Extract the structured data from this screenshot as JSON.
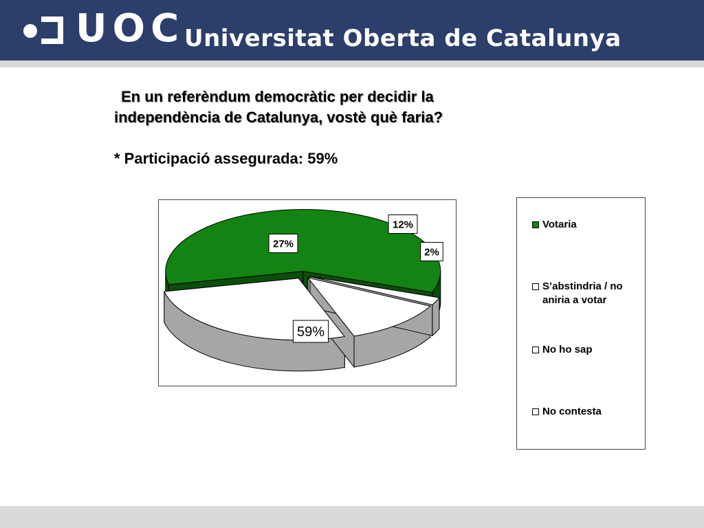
{
  "header": {
    "logo_text": "UOC",
    "institution": "Universitat Oberta de Catalunya"
  },
  "question": {
    "line1": "En un referèndum democràtic per decidir la",
    "line2": "independència de Catalunya, vostè què faria?"
  },
  "participation": "* Participació assegurada: 59%",
  "colors": {
    "header_bg": "#2c3f6b",
    "votaria": "#138413",
    "votaria_side": "#0b4e0b",
    "other": "#ffffff",
    "other_side": "#a6a6a6"
  },
  "chart_data": {
    "type": "pie",
    "title": "",
    "labels": [
      "Votaria",
      "S’abstindria / no aniria a votar",
      "No ho sap",
      "No contesta"
    ],
    "values": [
      59,
      27,
      12,
      2
    ],
    "value_labels": [
      "59%",
      "27%",
      "12%",
      "2%"
    ],
    "legend_position": "right",
    "style": "3d exploded"
  },
  "legend": {
    "items": [
      {
        "label": "Votaria",
        "color": "#138413"
      },
      {
        "label": "S’abstindria / no aniria a votar",
        "color": "#ffffff"
      },
      {
        "label": "No ho sap",
        "color": "#ffffff"
      },
      {
        "label": "No contesta",
        "color": "#ffffff"
      }
    ]
  }
}
